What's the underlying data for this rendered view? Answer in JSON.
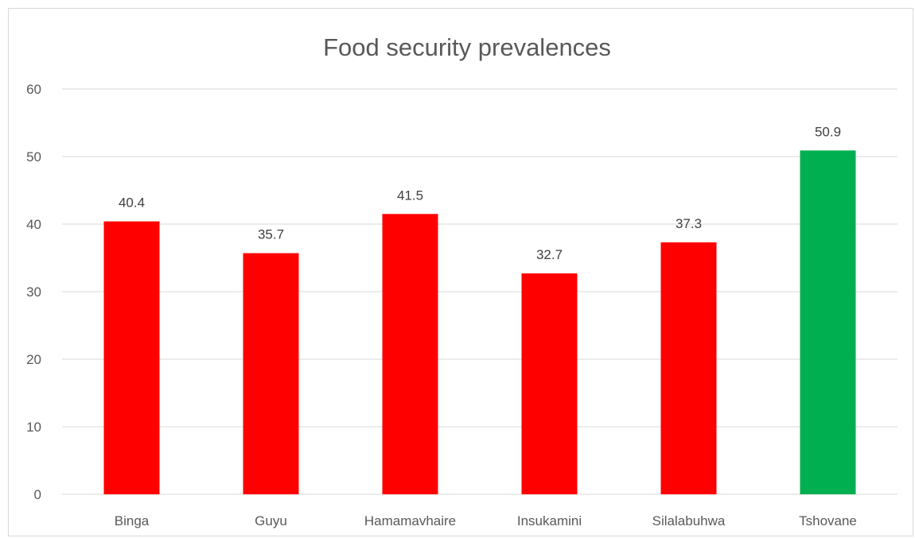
{
  "chart_data": {
    "type": "bar",
    "title": "Food security prevalences",
    "xlabel": "",
    "ylabel": "",
    "categories": [
      "Binga",
      "Guyu",
      "Hamamavhaire",
      "Insukamini",
      "Silalabuhwa",
      "Tshovane"
    ],
    "values": [
      40.4,
      35.7,
      41.5,
      32.7,
      37.3,
      50.9
    ],
    "data_labels": [
      "40.4",
      "35.7",
      "41.5",
      "32.7",
      "37.3",
      "50.9"
    ],
    "bar_colors": [
      "#FF0000",
      "#FF0000",
      "#FF0000",
      "#FF0000",
      "#FF0000",
      "#00B050"
    ],
    "ylim": [
      0,
      60
    ],
    "yticks": [
      0,
      10,
      20,
      30,
      40,
      50,
      60
    ],
    "grid": true,
    "legend": "none"
  }
}
